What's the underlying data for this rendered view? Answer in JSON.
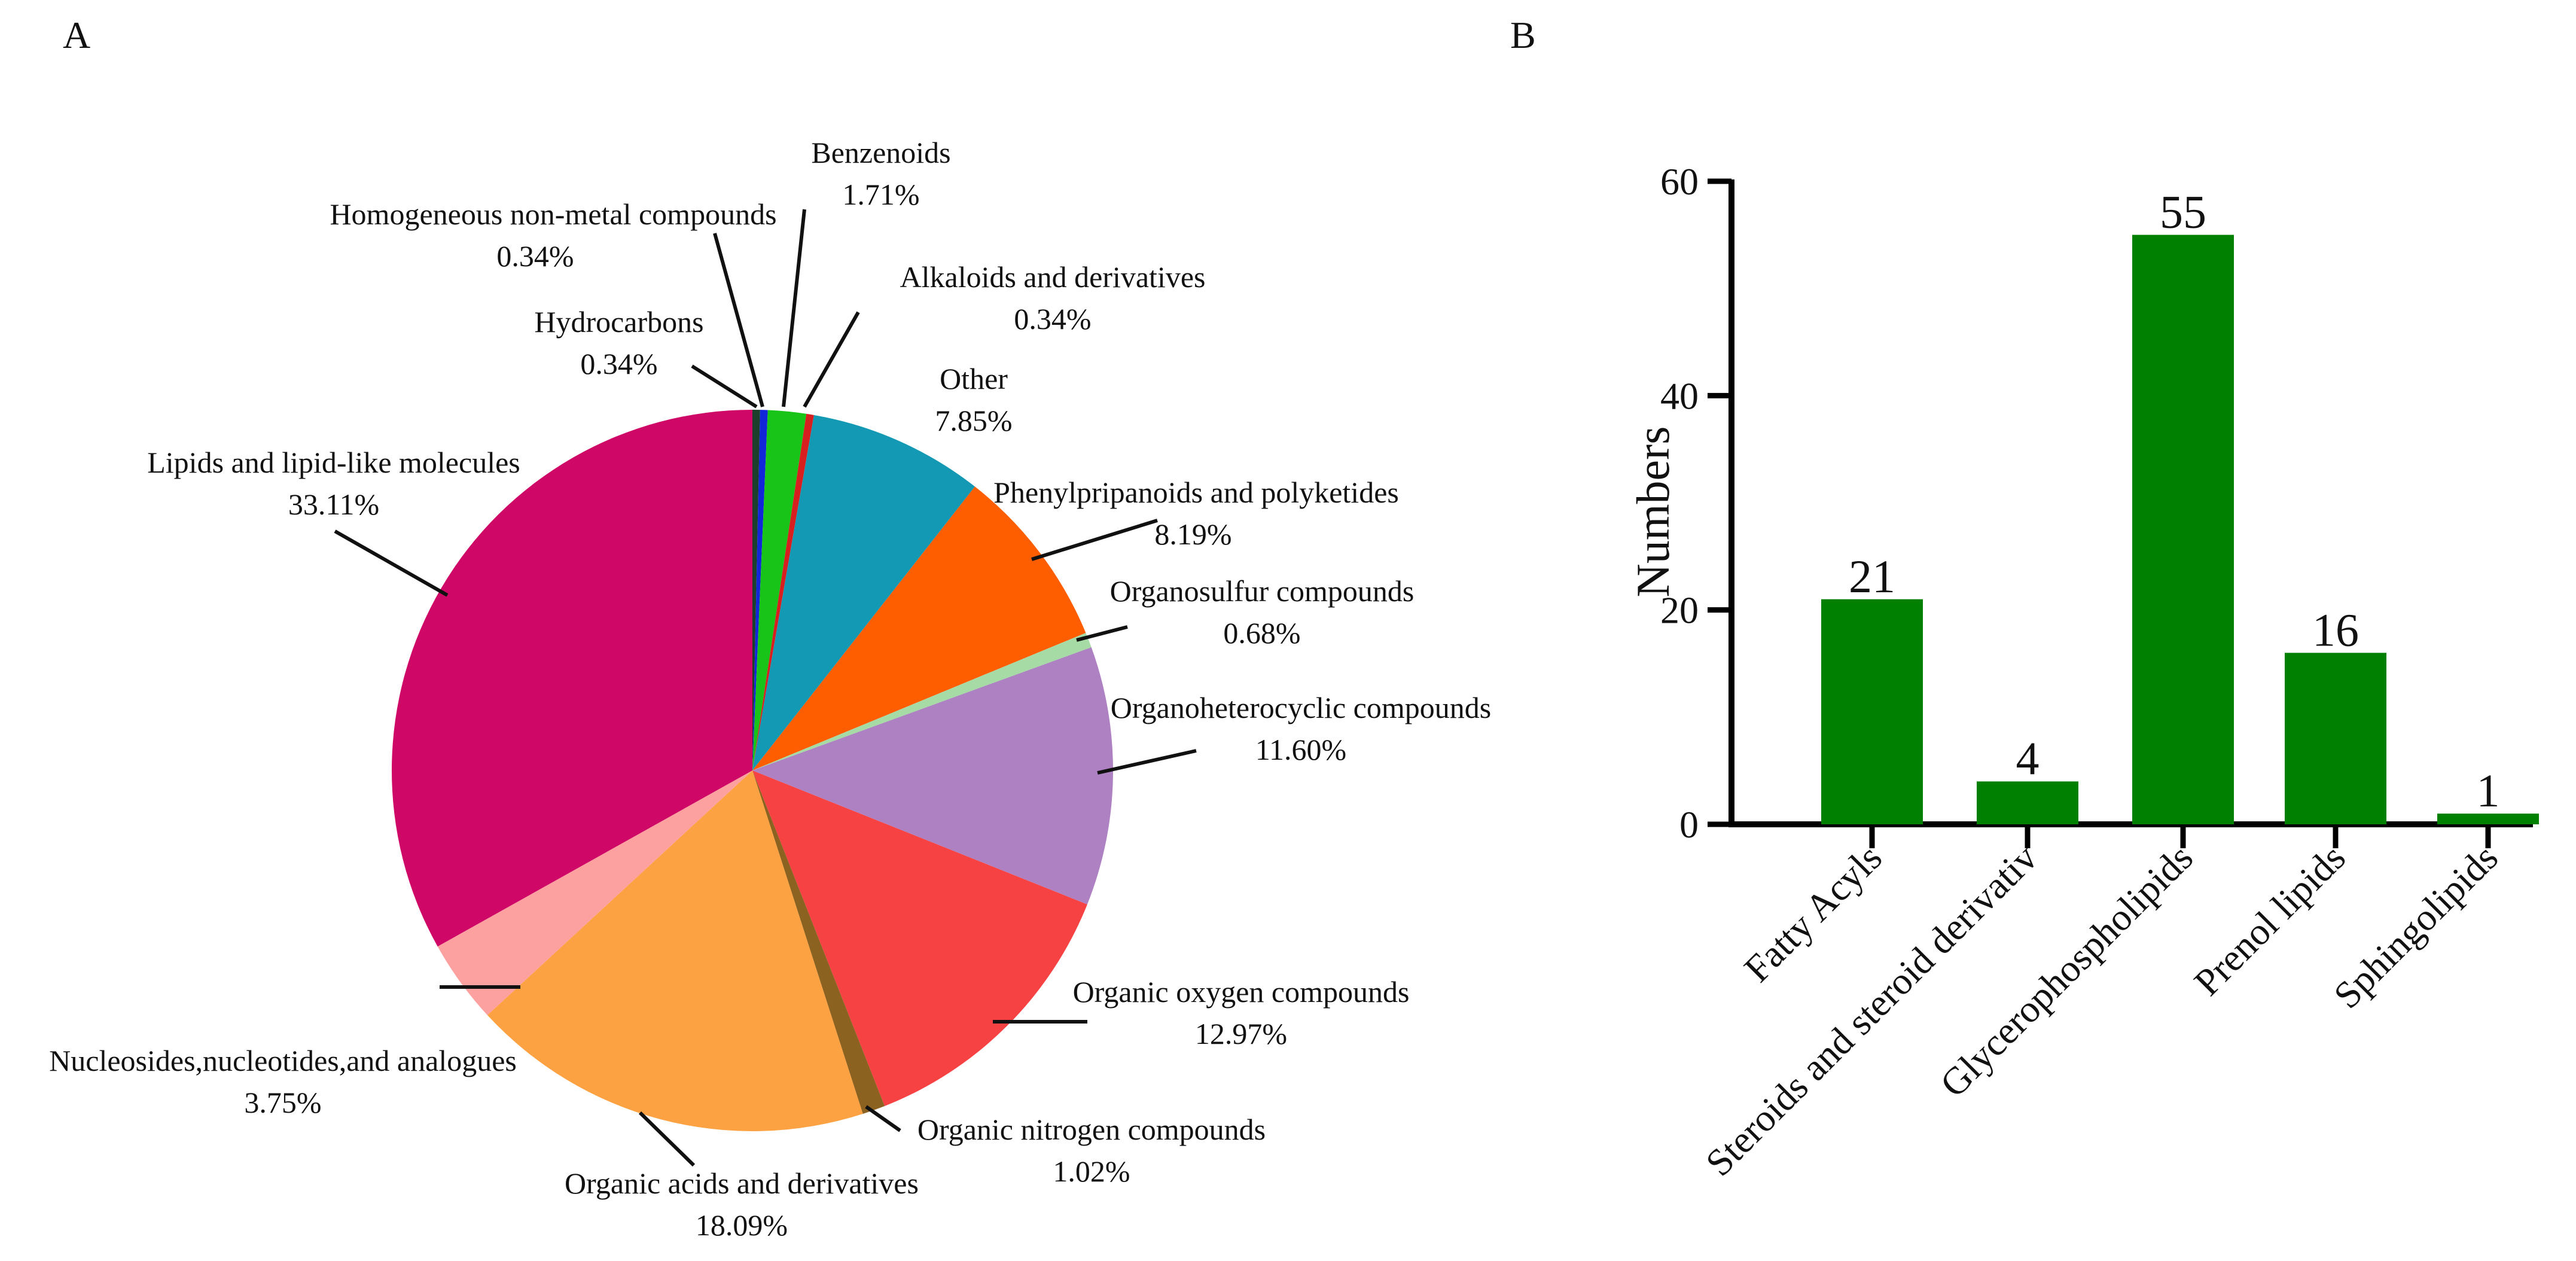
{
  "panels": {
    "a": "A",
    "b": "B"
  },
  "chart_data": [
    {
      "type": "pie",
      "panel": "A",
      "slices": [
        {
          "name": "Hydrocarbons",
          "value": 0.34,
          "label": "0.34%",
          "color": "#1c3f2c"
        },
        {
          "name": "Homogeneous non-metal compounds",
          "value": 0.34,
          "label": "0.34%",
          "color": "#1126d8"
        },
        {
          "name": "Benzenoids",
          "value": 1.71,
          "label": "1.71%",
          "color": "#19c419"
        },
        {
          "name": "Alkaloids and derivatives",
          "value": 0.34,
          "label": "0.34%",
          "color": "#d81f1f"
        },
        {
          "name": "Other",
          "value": 7.85,
          "label": "7.85%",
          "color": "#1499b5"
        },
        {
          "name": "Phenylpripanoids and polyketides",
          "value": 8.19,
          "label": "8.19%",
          "color": "#ff5e00"
        },
        {
          "name": "Organosulfur compounds",
          "value": 0.68,
          "label": "0.68%",
          "color": "#a6dba6"
        },
        {
          "name": "Organoheterocyclic compounds",
          "value": 11.6,
          "label": "11.60%",
          "color": "#ae82c2"
        },
        {
          "name": "Organic oxygen compounds",
          "value": 12.97,
          "label": "12.97%",
          "color": "#f74244"
        },
        {
          "name": "Organic nitrogen compounds",
          "value": 1.02,
          "label": "1.02%",
          "color": "#8b6220"
        },
        {
          "name": "Organic acids and derivatives",
          "value": 18.09,
          "label": "18.09%",
          "color": "#fda242"
        },
        {
          "name": "Nucleosides,nucleotides,and analogues",
          "value": 3.75,
          "label": "3.75%",
          "color": "#fda0a0"
        },
        {
          "name": "Lipids and lipid-like molecules",
          "value": 33.11,
          "label": "33.11%",
          "color": "#cf0766"
        }
      ]
    },
    {
      "type": "bar",
      "panel": "B",
      "categories": [
        "Fatty Acyls",
        "Steroids and steroid derivativ",
        "Glycerophospholipids",
        "Prenol lipids",
        "Sphingolipids"
      ],
      "values": [
        21,
        4,
        55,
        16,
        1
      ],
      "value_labels": [
        "21",
        "4",
        "55",
        "16",
        "1"
      ],
      "ylabel": "Numbers",
      "ylim": [
        0,
        60
      ],
      "yticks": [
        0,
        20,
        40,
        60
      ],
      "ytick_labels": [
        "0",
        "20",
        "40",
        "60"
      ],
      "color": "#008000"
    }
  ]
}
